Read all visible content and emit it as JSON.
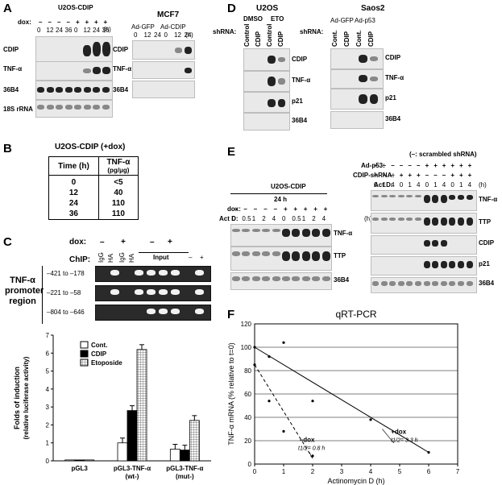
{
  "panels": {
    "a": "A",
    "b": "B",
    "c": "C",
    "d": "D",
    "e": "E",
    "f": "F"
  },
  "A": {
    "title": "U2OS-CDIP",
    "dox_label": "dox:",
    "dox_signs": [
      "–",
      "–",
      "–",
      "–",
      "+",
      "+",
      "+",
      "+"
    ],
    "times": [
      "0",
      "12",
      "24",
      "36",
      "0",
      "12",
      "24",
      "36"
    ],
    "h": "(h)",
    "rows": [
      "CDIP",
      "TNF-α",
      "36B4",
      "18S rRNA"
    ],
    "mcf7_title": "MCF7",
    "adgfp": "Ad-GFP",
    "adcdip": "Ad-CDIP",
    "mcf7_times": [
      "0",
      "12",
      "24",
      "0",
      "12",
      "24"
    ],
    "mcf7_rows": [
      "CDIP",
      "TNF-α",
      "36B4"
    ]
  },
  "B": {
    "title": "U2OS-CDIP (+dox)",
    "col1": "Time (h)",
    "col2": "TNF-α",
    "col2_unit": "(pg/μg)",
    "rows": [
      [
        "0",
        "<5"
      ],
      [
        "12",
        "40"
      ],
      [
        "24",
        "110"
      ],
      [
        "36",
        "110"
      ]
    ]
  },
  "C": {
    "dox_label": "dox:",
    "chip_label": "ChIP:",
    "minus": "–",
    "plus": "+",
    "igg": "IgG",
    "ha": "HA",
    "input": "Input",
    "side_label": "TNF-α promoter region",
    "regions": [
      "–421 to –178",
      "–221 to –58",
      "–804 to –646"
    ],
    "chart_data": {
      "type": "bar",
      "categories": [
        "pGL3",
        "pGL3-TNF-α (wt-)",
        "pGL3-TNF-α (mut-)"
      ],
      "series": [
        {
          "name": "Cont.",
          "values": [
            0.05,
            1.0,
            0.65
          ],
          "color": "#ffffff"
        },
        {
          "name": "CDIP",
          "values": [
            0.05,
            2.8,
            0.6
          ],
          "color": "#000000"
        },
        {
          "name": "Etoposide",
          "values": [
            0.05,
            6.2,
            2.25
          ],
          "color": "#aaaaaa"
        }
      ],
      "ylabel": "Folds of induction (relative luciferase activity)",
      "ylim": [
        0,
        7
      ],
      "yticks": [
        "0",
        "1",
        "2",
        "3",
        "4",
        "5",
        "6",
        "7"
      ],
      "cat_labels": [
        [
          "pGL3",
          ""
        ],
        [
          "pGL3-TNF-α",
          "(wt-)"
        ],
        [
          "pGL3-TNF-α",
          "(mut-)"
        ]
      ]
    }
  },
  "D": {
    "u2os": "U2OS",
    "dmso": "DMSO",
    "eto": "ETO",
    "shrna": "shRNA:",
    "lanes1": [
      "Control",
      "CDIP",
      "Control",
      "CDIP"
    ],
    "rows1": [
      "CDIP",
      "TNF-α",
      "p21",
      "36B4"
    ],
    "saos": "Saos2",
    "shrna2": "shRNA:",
    "adgfp": "Ad-GFP",
    "adp53": "Ad-p53",
    "lanes2": [
      "Cont.",
      "CDIP",
      "Cont.",
      "CDIP"
    ],
    "rows2": [
      "CDIP",
      "TNF-α",
      "p21",
      "36B4"
    ]
  },
  "E": {
    "title": "U2OS-CDIP",
    "hours": "24 h",
    "dox_label": "dox:",
    "actd_label": "Act D:",
    "dox_signs": [
      "–",
      "–",
      "–",
      "–",
      "–",
      "+",
      "+",
      "+",
      "+",
      "+"
    ],
    "actd": [
      "0",
      "0.5",
      "1",
      "2",
      "4",
      "0",
      "0.5",
      "1",
      "2",
      "4"
    ],
    "h": "(h)",
    "rows": [
      "TNF-α",
      "TTP",
      "36B4"
    ],
    "scr": "(–: scrambled shRNA)",
    "adp53_label": "Ad-p53:",
    "cdipsh_label": "CDIP-shRNA:",
    "actd2_label": "Act D:",
    "adp53": [
      "–",
      "–",
      "–",
      "–",
      "–",
      "–",
      "+",
      "+",
      "+",
      "+",
      "+",
      "+"
    ],
    "cdipsh": [
      "–",
      "–",
      "–",
      "+",
      "+",
      "+",
      "–",
      "–",
      "–",
      "+",
      "+",
      "+"
    ],
    "actd2": [
      "0",
      "1",
      "4",
      "0",
      "1",
      "4",
      "0",
      "1",
      "4",
      "0",
      "1",
      "4"
    ],
    "rows2": [
      "TNF-α",
      "TTP",
      "CDIP",
      "p21",
      "36B4"
    ]
  },
  "F": {
    "chart_data": {
      "type": "scatter",
      "title": "qRT-PCR",
      "xlabel": "Actinomycin D (h)",
      "ylabel": "TNF-α mRNA (% relative to t=0)",
      "xlim": [
        0,
        7
      ],
      "ylim": [
        0,
        120
      ],
      "xticks": [
        "0",
        "1",
        "2",
        "3",
        "4",
        "5",
        "6",
        "7"
      ],
      "yticks": [
        "0",
        "20",
        "40",
        "60",
        "80",
        "100",
        "120"
      ],
      "grid": true,
      "series": [
        {
          "name": "+dox",
          "x": [
            0,
            0.5,
            1,
            2,
            4,
            6
          ],
          "y": [
            100,
            92,
            104,
            54,
            38,
            10
          ],
          "fit": [
            [
              0,
              100
            ],
            [
              6,
              10
            ]
          ],
          "style": "solid"
        },
        {
          "name": "–dox",
          "x": [
            0,
            0.5,
            1,
            2
          ],
          "y": [
            85,
            54,
            28,
            7
          ],
          "fit": [
            [
              0,
              85
            ],
            [
              2,
              5
            ]
          ],
          "style": "dashed"
        }
      ],
      "annotations": [
        {
          "text": "+dox",
          "sub": "t1/2= 3.3 h"
        },
        {
          "text": "–dox",
          "sub": "t1/2= 0.8 h"
        }
      ]
    }
  }
}
